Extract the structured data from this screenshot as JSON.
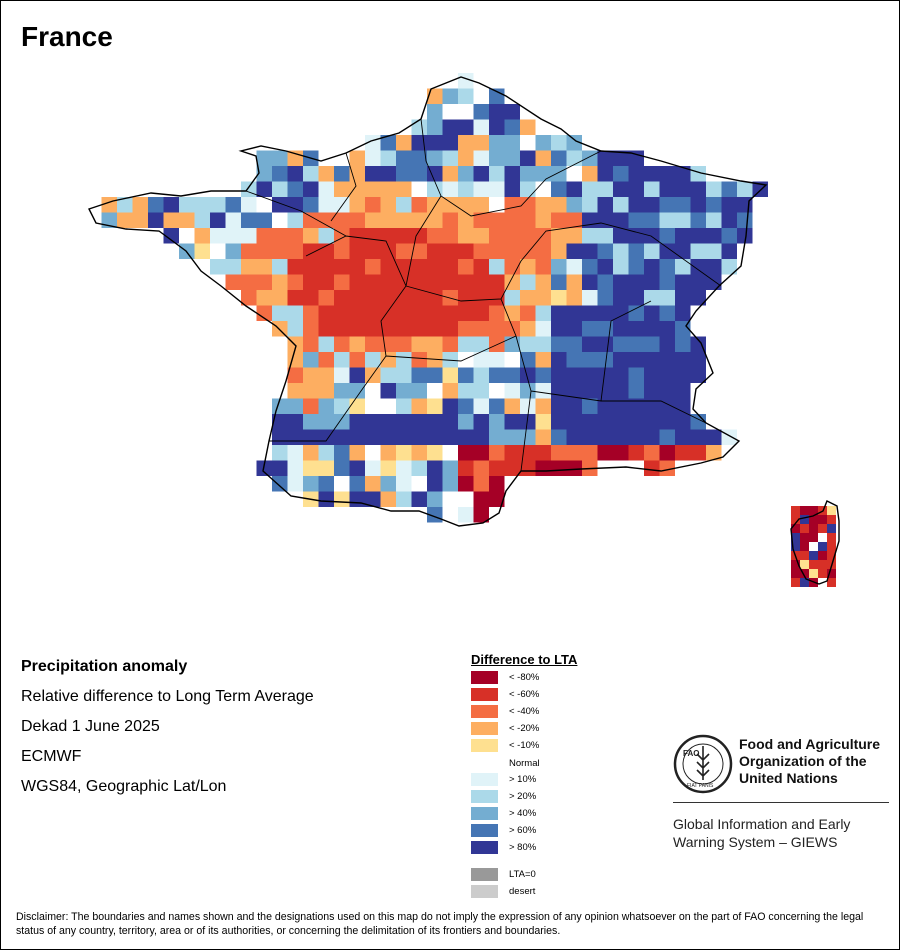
{
  "title": "France",
  "info": {
    "heading": "Precipitation anomaly",
    "line1": "Relative difference to Long Term Average",
    "line2": "Dekad 1 June 2025",
    "line3": "ECMWF",
    "line4": "WGS84, Geographic Lat/Lon"
  },
  "legend": {
    "title": "Difference to LTA",
    "items": [
      {
        "label": "< -80%",
        "color": "#a50026"
      },
      {
        "label": "< -60%",
        "color": "#d73027"
      },
      {
        "label": "< -40%",
        "color": "#f46d43"
      },
      {
        "label": "< -20%",
        "color": "#fdae61"
      },
      {
        "label": "< -10%",
        "color": "#fee090"
      },
      {
        "label": "Normal",
        "color": "#ffffff"
      },
      {
        "label": "> 10%",
        "color": "#e0f3f8"
      },
      {
        "label": "> 20%",
        "color": "#abd9e9"
      },
      {
        "label": "> 40%",
        "color": "#74add1"
      },
      {
        "label": "> 60%",
        "color": "#4575b4"
      },
      {
        "label": "> 80%",
        "color": "#313695"
      },
      {
        "label": "LTA=0",
        "color": "#999999"
      },
      {
        "label": "desert",
        "color": "#cccccc"
      }
    ]
  },
  "org": {
    "logo_letters": "FAO",
    "logo_motto": "FIAT PANIS",
    "name_line1": "Food and Agriculture",
    "name_line2": "Organization of the",
    "name_line3": "United Nations",
    "system_line1": "Global Information and Early",
    "system_line2": "Warning System – GIEWS"
  },
  "disclaimer": "Disclaimer: The boundaries and names shown and the designations used on this map do not imply the expression of any opinion whatsoever on the part of FAO concerning the legal status of any country, territory, area or of its authorities, or concerning the delimitation of its frontiers and boundaries.",
  "map_icon": "precipitation-anomaly-grid"
}
